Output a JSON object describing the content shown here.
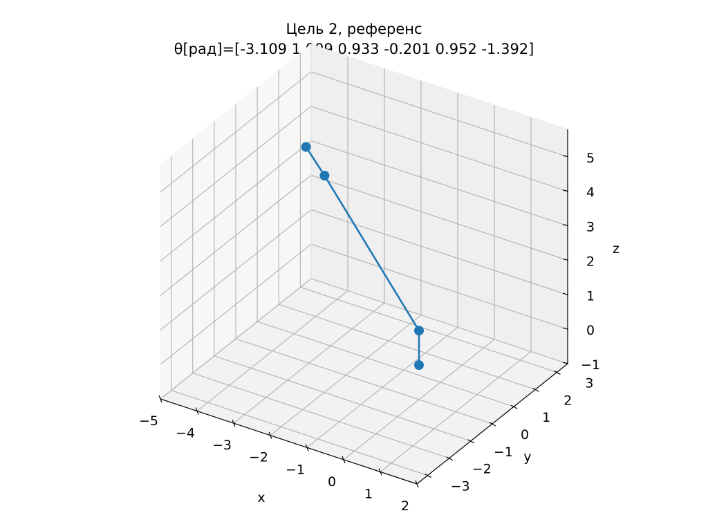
{
  "chart_data": {
    "type": "line",
    "projection": "3d",
    "title": "Цель 2, референс",
    "subtitle": "θ[рад]=[-3.109  1.009  0.933 -0.201  0.952 -1.392]",
    "xlabel": "x",
    "ylabel": "y",
    "zlabel": "z",
    "xlim": [
      -5,
      2
    ],
    "ylim": [
      -3.5,
      3.5
    ],
    "zlim": [
      -1,
      5.8
    ],
    "xticks": [
      "−5",
      "−4",
      "−3",
      "−2",
      "−1",
      "0",
      "1",
      "2"
    ],
    "yticks": [
      "−3",
      "−2",
      "−1",
      "0",
      "1",
      "2",
      "3"
    ],
    "zticks": [
      "−1",
      "0",
      "1",
      "2",
      "3",
      "4",
      "5"
    ],
    "grid": true,
    "series": [
      {
        "color": "#1f77b4",
        "marker": "circle",
        "points": [
          {
            "x": 0.0,
            "y": 0.0,
            "z": 0.0
          },
          {
            "x": 0.0,
            "y": 0.0,
            "z": 1.0
          },
          {
            "x": -3.4,
            "y": 1.4,
            "z": 3.6
          },
          {
            "x": -4.2,
            "y": 1.9,
            "z": 3.9
          }
        ]
      }
    ]
  }
}
